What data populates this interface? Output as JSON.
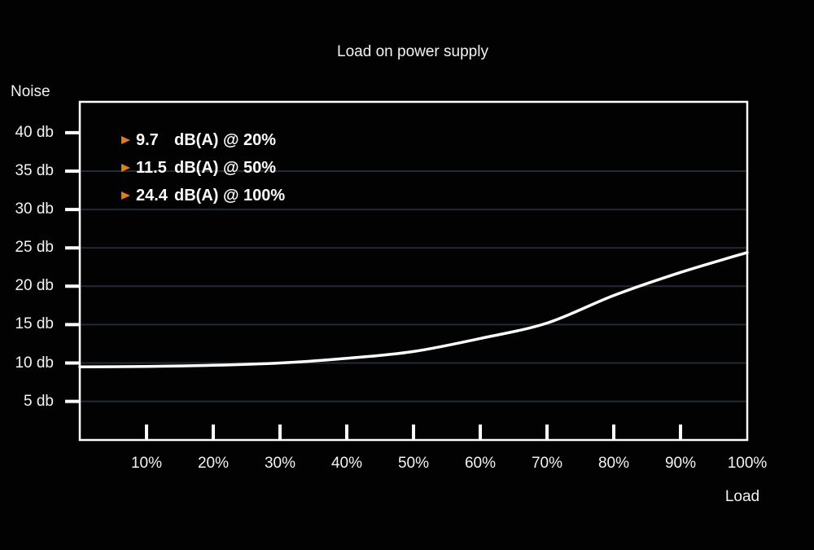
{
  "title": "Load on power supply",
  "axes": {
    "y_label": "Noise",
    "x_label": "Load"
  },
  "legend": {
    "marker": "triangle-right",
    "items": [
      {
        "value": "9.7",
        "detail": "dB(A) @ 20%"
      },
      {
        "value": "11.5",
        "detail": "dB(A) @ 50%"
      },
      {
        "value": "24.4",
        "detail": "dB(A) @ 100%"
      }
    ]
  },
  "colors": {
    "background": "#020202",
    "text": "#F3F3F3",
    "accent_orange": "#E07C1E",
    "gridline": "#242A32",
    "curve": "#FFFFFF",
    "border": "#FFFFFF"
  },
  "chart_data": {
    "type": "line",
    "title": "Load on power supply",
    "xlabel": "Load",
    "ylabel": "Noise",
    "x": [
      0,
      10,
      20,
      30,
      40,
      50,
      60,
      70,
      80,
      90,
      100
    ],
    "y": [
      9.5,
      9.55,
      9.7,
      10.0,
      10.6,
      11.5,
      13.2,
      15.2,
      18.8,
      21.8,
      24.4
    ],
    "x_unit": "% load",
    "y_unit": "dB(A)",
    "x_tick_values": [
      10,
      20,
      30,
      40,
      50,
      60,
      70,
      80,
      90,
      100
    ],
    "x_tick_labels": [
      "10%",
      "20%",
      "30%",
      "40%",
      "50%",
      "60%",
      "70%",
      "80%",
      "90%",
      "100%"
    ],
    "y_tick_values": [
      40,
      35,
      30,
      25,
      20,
      15,
      10,
      5
    ],
    "y_tick_labels": [
      "40 db",
      "35 db",
      "30 db",
      "25 db",
      "20 db",
      "15 db",
      "10 db",
      "5 db"
    ],
    "grid_y_values": [
      35,
      30,
      25,
      20,
      15,
      10,
      5
    ],
    "grid": "horizontal-only",
    "xlim": [
      0,
      100
    ],
    "ylim": [
      0.2,
      43.9
    ],
    "legend_position": "top-left-inside",
    "annotations": [
      "9.7 dB(A) @ 20%",
      "11.5 dB(A) @ 50%",
      "24.4 dB(A) @ 100%"
    ]
  }
}
